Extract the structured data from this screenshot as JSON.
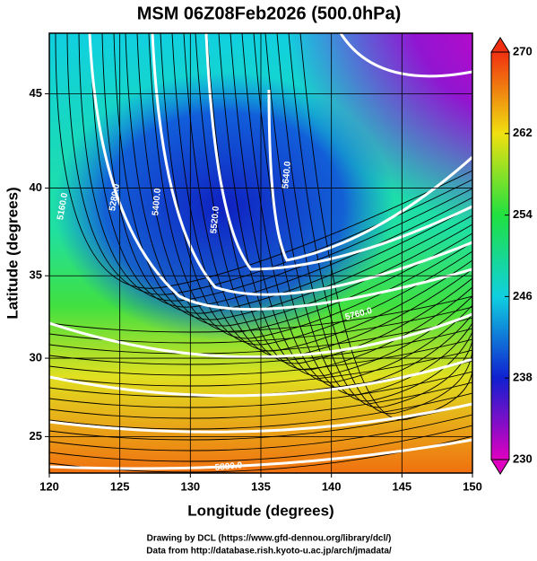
{
  "title": "MSM 06Z08Feb2026 (500.0hPa)",
  "x_label": "Longitude (degrees)",
  "y_label": "Latitude  (degrees)",
  "xlim": [
    120,
    150
  ],
  "xticks": [
    120,
    125,
    130,
    135,
    140,
    145,
    150
  ],
  "ylim": [
    22.6,
    48
  ],
  "yticks": [
    25,
    30,
    35,
    40,
    45
  ],
  "projection": "mercator",
  "colorbar": {
    "range": [
      230,
      270
    ],
    "ticks": [
      230,
      238,
      246,
      254,
      262,
      270
    ],
    "colors": [
      "#e000c0",
      "#1020d0",
      "#10d0e0",
      "#20e040",
      "#f0e010",
      "#f03010"
    ]
  },
  "contour_labels": [
    "5160.0",
    "5280.0",
    "5400.0",
    "5520.0",
    "5640.0",
    "5760.0",
    "5880.0"
  ],
  "footer": [
    "Drawing by DCL (https://www.gfd-dennou.org/library/dcl/)",
    "Data from http://database.rish.kyoto-u.ac.jp/arch/jmadata/"
  ]
}
